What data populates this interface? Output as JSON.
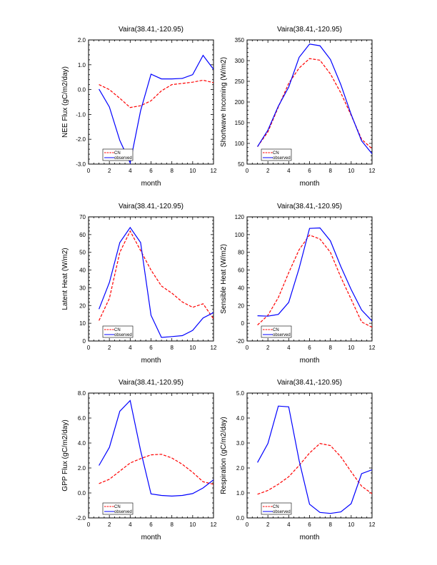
{
  "chart_data": [
    {
      "type": "line",
      "title": "Vaira(38.41,-120.95)",
      "xlabel": "month",
      "ylabel": "NEE Flux (gC/m2/day)",
      "xlim": [
        0,
        12
      ],
      "ylim": [
        -3.0,
        2.0
      ],
      "xticks": [
        0,
        2,
        4,
        6,
        8,
        10,
        12
      ],
      "yticks": [
        -3.0,
        -2.0,
        -1.0,
        0.0,
        1.0,
        2.0
      ],
      "ytick_labels": [
        "-3.0",
        "-2.0",
        "-1.0",
        "0.0",
        "1.0",
        "2.0"
      ],
      "x": [
        1,
        2,
        3,
        4,
        5,
        6,
        7,
        8,
        9,
        10,
        11,
        12
      ],
      "legend": "bottom-left",
      "series": [
        {
          "name": "CN",
          "color": "#ff0000",
          "style": "dashed",
          "values": [
            0.2,
            0.0,
            -0.35,
            -0.72,
            -0.65,
            -0.45,
            -0.05,
            0.2,
            0.25,
            0.3,
            0.38,
            0.28
          ]
        },
        {
          "name": "observed",
          "color": "#0000ff",
          "style": "solid",
          "values": [
            0.02,
            -0.7,
            -2.05,
            -2.95,
            -0.85,
            0.62,
            0.43,
            0.43,
            0.45,
            0.6,
            1.38,
            0.82
          ]
        }
      ]
    },
    {
      "type": "line",
      "title": "Vaira(38.41,-120.95)",
      "xlabel": "month",
      "ylabel": "Shortwave Incoming (W/m2)",
      "xlim": [
        0,
        12
      ],
      "ylim": [
        50,
        350
      ],
      "xticks": [
        0,
        2,
        4,
        6,
        8,
        10,
        12
      ],
      "yticks": [
        50,
        100,
        150,
        200,
        250,
        300,
        350
      ],
      "ytick_labels": [
        "50",
        "100",
        "150",
        "200",
        "250",
        "300",
        "350"
      ],
      "x": [
        1,
        2,
        3,
        4,
        5,
        6,
        7,
        8,
        9,
        10,
        11,
        12
      ],
      "legend": "bottom-left",
      "series": [
        {
          "name": "CN",
          "color": "#ff0000",
          "style": "dashed",
          "values": [
            92,
            128,
            188,
            245,
            282,
            305,
            301,
            268,
            222,
            168,
            110,
            87
          ]
        },
        {
          "name": "observed",
          "color": "#0000ff",
          "style": "solid",
          "values": [
            92,
            132,
            190,
            236,
            308,
            340,
            336,
            303,
            242,
            170,
            106,
            75
          ]
        }
      ]
    },
    {
      "type": "line",
      "title": "Vaira(38.41,-120.95)",
      "xlabel": "month",
      "ylabel": "Latent Heat (W/m2)",
      "xlim": [
        0,
        12
      ],
      "ylim": [
        0,
        70
      ],
      "xticks": [
        0,
        2,
        4,
        6,
        8,
        10,
        12
      ],
      "yticks": [
        0,
        10,
        20,
        30,
        40,
        50,
        60,
        70
      ],
      "ytick_labels": [
        "0",
        "10",
        "20",
        "30",
        "40",
        "50",
        "60",
        "70"
      ],
      "x": [
        1,
        2,
        3,
        4,
        5,
        6,
        7,
        8,
        9,
        10,
        11,
        12
      ],
      "legend": "bottom-left",
      "series": [
        {
          "name": "CN",
          "color": "#ff0000",
          "style": "dashed",
          "values": [
            11.5,
            24,
            50,
            62,
            51,
            40,
            31,
            27,
            22,
            19,
            21,
            12.5
          ]
        },
        {
          "name": "observed",
          "color": "#0000ff",
          "style": "solid",
          "values": [
            18,
            33,
            55.5,
            64,
            55.5,
            14.5,
            2,
            2.5,
            3,
            6,
            13,
            16
          ]
        }
      ]
    },
    {
      "type": "line",
      "title": "Vaira(38.41,-120.95)",
      "xlabel": "month",
      "ylabel": "Sensible Heat (W/m2)",
      "xlim": [
        0,
        12
      ],
      "ylim": [
        -20,
        120
      ],
      "xticks": [
        0,
        2,
        4,
        6,
        8,
        10,
        12
      ],
      "yticks": [
        -20,
        0,
        20,
        40,
        60,
        80,
        100,
        120
      ],
      "ytick_labels": [
        "-20",
        "0",
        "20",
        "40",
        "60",
        "80",
        "100",
        "120"
      ],
      "x": [
        1,
        2,
        3,
        4,
        5,
        6,
        7,
        8,
        9,
        10,
        11,
        12
      ],
      "legend": "bottom-left",
      "series": [
        {
          "name": "CN",
          "color": "#ff0000",
          "style": "dashed",
          "values": [
            -2,
            9,
            29,
            57,
            83,
            99.5,
            95,
            80,
            52,
            27,
            1.5,
            -4.5
          ]
        },
        {
          "name": "observed",
          "color": "#0000ff",
          "style": "solid",
          "values": [
            8.5,
            8,
            10,
            23.5,
            62,
            107,
            107.5,
            93,
            64,
            38,
            15,
            2.5
          ]
        }
      ]
    },
    {
      "type": "line",
      "title": "Vaira(38.41,-120.95)",
      "xlabel": "month",
      "ylabel": "GPP Flux (gC/m2/day)",
      "xlim": [
        0,
        12
      ],
      "ylim": [
        -2.0,
        8.0
      ],
      "xticks": [
        0,
        2,
        4,
        6,
        8,
        10,
        12
      ],
      "yticks": [
        -2.0,
        0.0,
        2.0,
        4.0,
        6.0,
        8.0
      ],
      "ytick_labels": [
        "-2.0",
        "0.0",
        "2.0",
        "4.0",
        "6.0",
        "8.0"
      ],
      "x": [
        1,
        2,
        3,
        4,
        5,
        6,
        7,
        8,
        9,
        10,
        11,
        12
      ],
      "legend": "bottom-left",
      "series": [
        {
          "name": "CN",
          "color": "#ff0000",
          "style": "dashed",
          "values": [
            0.75,
            1.1,
            1.75,
            2.4,
            2.75,
            3.05,
            3.1,
            2.8,
            2.3,
            1.65,
            0.9,
            0.7
          ]
        },
        {
          "name": "observed",
          "color": "#0000ff",
          "style": "solid",
          "values": [
            2.2,
            3.65,
            6.55,
            7.4,
            3.4,
            -0.08,
            -0.2,
            -0.25,
            -0.2,
            -0.05,
            0.4,
            1.05
          ]
        }
      ]
    },
    {
      "type": "line",
      "title": "Vaira(38.41,-120.95)",
      "xlabel": "month",
      "ylabel": "Respiration (gC/m2/day)",
      "xlim": [
        0,
        12
      ],
      "ylim": [
        0.0,
        5.0
      ],
      "xticks": [
        0,
        2,
        4,
        6,
        8,
        10,
        12
      ],
      "yticks": [
        0.0,
        1.0,
        2.0,
        3.0,
        4.0,
        5.0
      ],
      "ytick_labels": [
        "0.0",
        "1.0",
        "2.0",
        "3.0",
        "4.0",
        "5.0"
      ],
      "x": [
        1,
        2,
        3,
        4,
        5,
        6,
        7,
        8,
        9,
        10,
        11,
        12
      ],
      "legend": "bottom-left",
      "series": [
        {
          "name": "CN",
          "color": "#ff0000",
          "style": "dashed",
          "values": [
            0.95,
            1.1,
            1.35,
            1.65,
            2.1,
            2.6,
            2.98,
            2.9,
            2.45,
            1.85,
            1.27,
            0.97
          ]
        },
        {
          "name": "observed",
          "color": "#0000ff",
          "style": "solid",
          "values": [
            2.22,
            2.98,
            4.48,
            4.45,
            2.3,
            0.55,
            0.22,
            0.18,
            0.24,
            0.57,
            1.77,
            1.93
          ]
        }
      ]
    }
  ]
}
